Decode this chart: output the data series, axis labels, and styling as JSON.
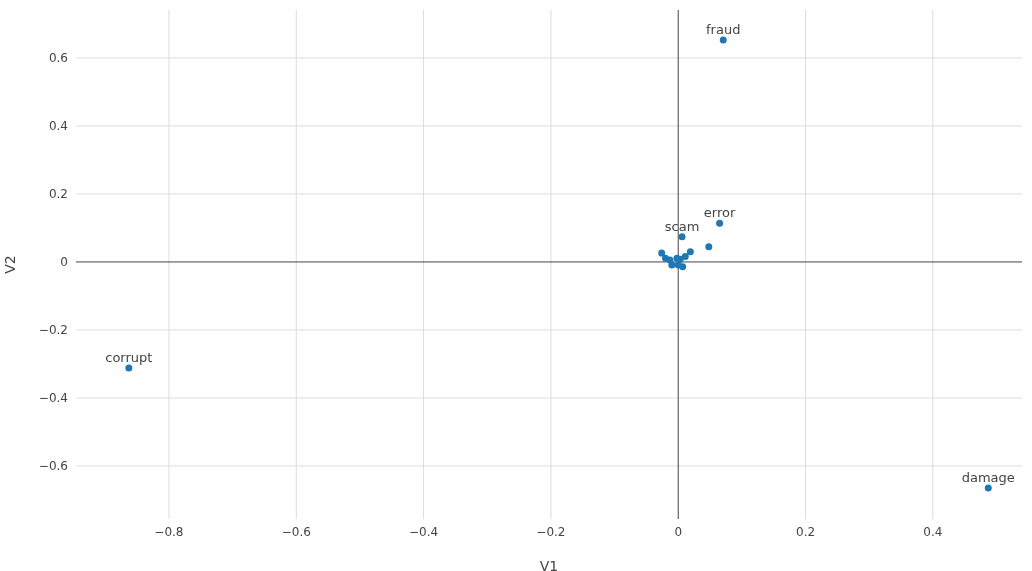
{
  "chart_data": {
    "type": "scatter",
    "xlabel": "V1",
    "ylabel": "V2",
    "x": [
      0.0707,
      0.065,
      0.006,
      -0.863,
      0.487,
      0.048,
      0.02,
      0.019,
      -0.026,
      -0.02,
      -0.015,
      -0.007,
      -0.002,
      0.003,
      0.008,
      0.011,
      0.007,
      0.0,
      -0.01,
      -0.013
    ],
    "series": [
      {
        "color": "#1f77b4",
        "values": [
          0.653,
          0.114,
          0.074,
          -0.312,
          -0.665,
          0.045,
          null,
          0.03,
          0.026,
          0.011,
          null,
          null,
          0.011,
          0.008,
          null,
          0.016,
          -0.014,
          -0.009,
          -0.009,
          0.006
        ]
      }
    ],
    "marker": "circle",
    "grid": true,
    "xlim": [
      -0.946,
      0.54
    ],
    "ylim": [
      -0.756,
      0.741
    ],
    "xticks": [
      {
        "value": -0.8,
        "label": "−0.8"
      },
      {
        "value": -0.6,
        "label": "−0.6"
      },
      {
        "value": -0.4,
        "label": "−0.4"
      },
      {
        "value": -0.2,
        "label": "−0.2"
      },
      0,
      0.2,
      0.4
    ],
    "yticks": [
      {
        "value": -0.6,
        "label": "−0.6"
      },
      {
        "value": -0.4,
        "label": "−0.4"
      },
      {
        "value": -0.2,
        "label": "−0.2"
      },
      0,
      0.2,
      0.4,
      0.6
    ],
    "annotations": [
      {
        "text": "fraud",
        "x": 0.0707,
        "y": 0.653
      },
      {
        "text": "error",
        "x": 0.065,
        "y": 0.114
      },
      {
        "text": "scam",
        "x": 0.006,
        "y": 0.074
      },
      {
        "text": "corrupt",
        "x": -0.863,
        "y": -0.312
      },
      {
        "text": "damage",
        "x": 0.487,
        "y": -0.665
      }
    ]
  }
}
